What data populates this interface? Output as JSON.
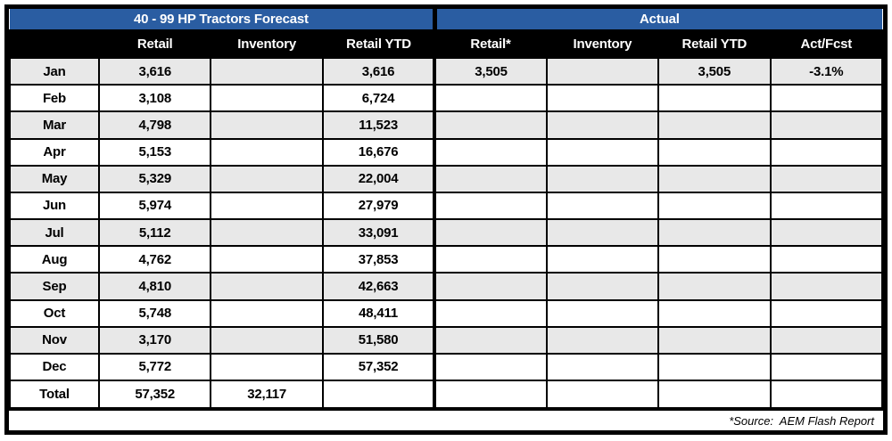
{
  "colors": {
    "header_blue": "#2A5DA2",
    "header_black": "#000000",
    "row_shade": "#E8E8E8"
  },
  "chart_data": {
    "type": "table",
    "sections": [
      {
        "label": "40 - 99 HP Tractors Forecast",
        "colspan": 4
      },
      {
        "label": "Actual",
        "colspan": 4
      }
    ],
    "columns": [
      "",
      "Retail",
      "Inventory",
      "Retail YTD",
      "Retail*",
      "Inventory",
      "Retail YTD",
      "Act/Fcst"
    ],
    "rows": [
      {
        "label": "Jan",
        "cells": [
          "3,616",
          "",
          "3,616",
          "3,505",
          "",
          "3,505",
          "-3.1%"
        ]
      },
      {
        "label": "Feb",
        "cells": [
          "3,108",
          "",
          "6,724",
          "",
          "",
          "",
          ""
        ]
      },
      {
        "label": "Mar",
        "cells": [
          "4,798",
          "",
          "11,523",
          "",
          "",
          "",
          ""
        ]
      },
      {
        "label": "Apr",
        "cells": [
          "5,153",
          "",
          "16,676",
          "",
          "",
          "",
          ""
        ]
      },
      {
        "label": "May",
        "cells": [
          "5,329",
          "",
          "22,004",
          "",
          "",
          "",
          ""
        ]
      },
      {
        "label": "Jun",
        "cells": [
          "5,974",
          "",
          "27,979",
          "",
          "",
          "",
          ""
        ]
      },
      {
        "label": "Jul",
        "cells": [
          "5,112",
          "",
          "33,091",
          "",
          "",
          "",
          ""
        ]
      },
      {
        "label": "Aug",
        "cells": [
          "4,762",
          "",
          "37,853",
          "",
          "",
          "",
          ""
        ]
      },
      {
        "label": "Sep",
        "cells": [
          "4,810",
          "",
          "42,663",
          "",
          "",
          "",
          ""
        ]
      },
      {
        "label": "Oct",
        "cells": [
          "5,748",
          "",
          "48,411",
          "",
          "",
          "",
          ""
        ]
      },
      {
        "label": "Nov",
        "cells": [
          "3,170",
          "",
          "51,580",
          "",
          "",
          "",
          ""
        ]
      },
      {
        "label": "Dec",
        "cells": [
          "5,772",
          "",
          "57,352",
          "",
          "",
          "",
          ""
        ]
      },
      {
        "label": "Total",
        "cells": [
          "57,352",
          "32,117",
          "",
          "",
          "",
          "",
          ""
        ]
      }
    ],
    "footer_note": "*Source:  AEM Flash Report"
  }
}
